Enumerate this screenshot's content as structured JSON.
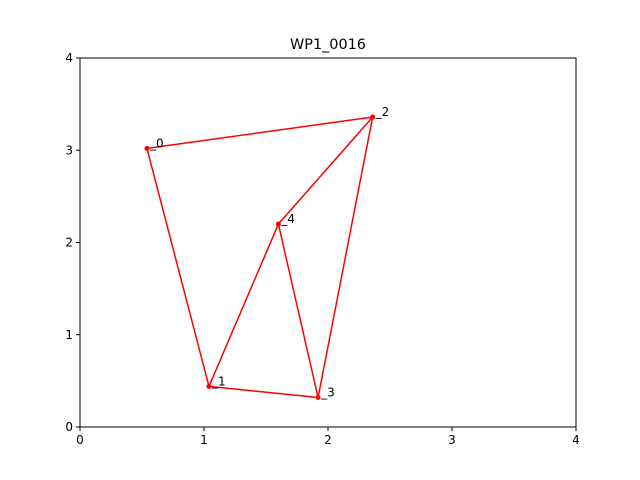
{
  "chart_data": {
    "type": "line",
    "title": "WP1_0016",
    "xlabel": "",
    "ylabel": "",
    "xlim": [
      0,
      4
    ],
    "ylim": [
      0,
      4
    ],
    "xticks": [
      "0",
      "1",
      "2",
      "3",
      "4"
    ],
    "yticks": [
      "0",
      "1",
      "2",
      "3",
      "4"
    ],
    "grid": false,
    "points": [
      {
        "label": "0",
        "x": 0.54,
        "y": 3.02
      },
      {
        "label": "1",
        "x": 1.04,
        "y": 0.44
      },
      {
        "label": "2",
        "x": 2.36,
        "y": 3.36
      },
      {
        "label": "3",
        "x": 1.92,
        "y": 0.32
      },
      {
        "label": "4",
        "x": 1.6,
        "y": 2.2
      }
    ],
    "path_order": [
      0,
      1,
      4,
      3,
      2,
      4,
      3,
      1,
      0,
      2
    ],
    "series": [
      {
        "color": "#ff0000",
        "values": []
      }
    ]
  }
}
